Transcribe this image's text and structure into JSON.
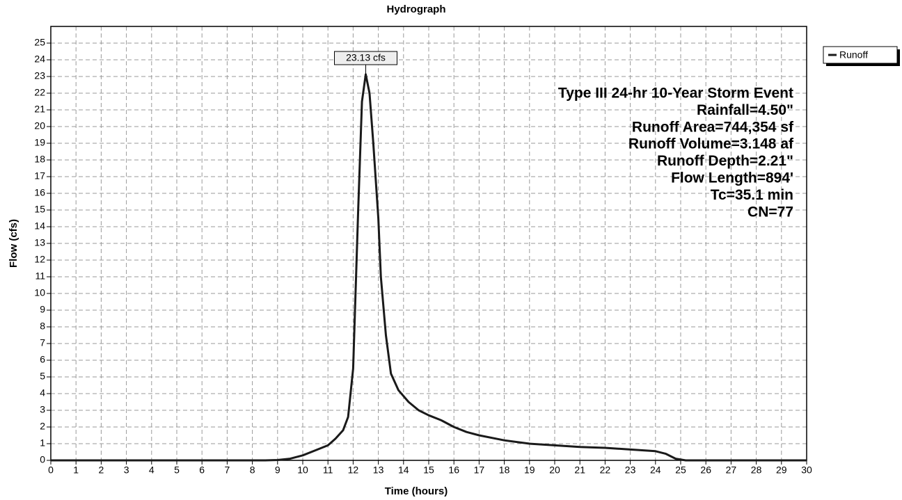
{
  "chart_data": {
    "type": "line",
    "title": "Hydrograph",
    "xlabel": "Time (hours)",
    "ylabel": "Flow (cfs)",
    "x": [
      0,
      8.5,
      9,
      9.5,
      10,
      10.5,
      11,
      11.3,
      11.6,
      11.8,
      12.0,
      12.2,
      12.35,
      12.5,
      12.65,
      12.8,
      13.0,
      13.1,
      13.3,
      13.5,
      13.8,
      14.2,
      14.6,
      15,
      15.5,
      16,
      16.5,
      17,
      18,
      19,
      20,
      21,
      22,
      23,
      24,
      24.4,
      24.8,
      25.2,
      30
    ],
    "series": [
      {
        "name": "Runoff",
        "color": "#1a1a1a",
        "values": [
          0,
          0,
          0.02,
          0.1,
          0.3,
          0.6,
          0.9,
          1.3,
          1.8,
          2.6,
          5.5,
          15,
          21.5,
          23.13,
          22,
          19,
          14.5,
          11,
          7.5,
          5.2,
          4.2,
          3.5,
          3.0,
          2.7,
          2.4,
          2.0,
          1.7,
          1.5,
          1.2,
          1.0,
          0.9,
          0.8,
          0.75,
          0.65,
          0.55,
          0.4,
          0.1,
          0,
          0
        ]
      }
    ],
    "xlim": [
      0,
      30
    ],
    "xticks": [
      0,
      1,
      2,
      3,
      4,
      5,
      6,
      7,
      8,
      9,
      10,
      11,
      12,
      13,
      14,
      15,
      16,
      17,
      18,
      19,
      20,
      21,
      22,
      23,
      24,
      25,
      26,
      27,
      28,
      29,
      30
    ],
    "ylim": [
      0,
      26
    ],
    "yticks": [
      0,
      1,
      2,
      3,
      4,
      5,
      6,
      7,
      8,
      9,
      10,
      11,
      12,
      13,
      14,
      15,
      16,
      17,
      18,
      19,
      20,
      21,
      22,
      23,
      24,
      25
    ],
    "grid": true,
    "peak_annotation": {
      "x": 12.5,
      "y": 23.13,
      "label": "23.13 cfs"
    },
    "info": [
      "Type III 24-hr 10-Year Storm Event",
      "Rainfall=4.50\"",
      "Runoff Area=744,354 sf",
      "Runoff Volume=3.148 af",
      "Runoff Depth=2.21\"",
      "Flow Length=894'",
      "Tc=35.1 min",
      "CN=77"
    ]
  }
}
